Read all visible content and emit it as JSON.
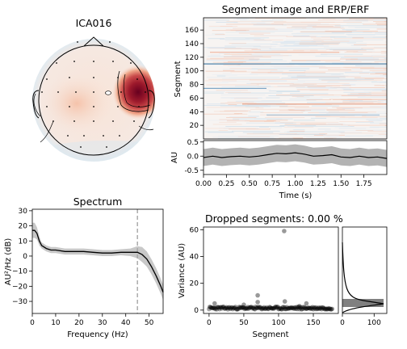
{
  "figure": {
    "topomap_title": "ICA016",
    "segment_title": "Segment image and ERP/ERF",
    "spectrum_title": "Spectrum",
    "dropped_title": "Dropped segments: 0.00 %"
  },
  "chart_data": [
    {
      "type": "heatmap",
      "name": "ICA016 topomap",
      "title": "ICA016",
      "peak_region": "right temporal (strong positive, dark red)",
      "secondary_region": "left frontal (light positive)",
      "colormap": "RdBu_r"
    },
    {
      "type": "heatmap",
      "name": "segment image",
      "title": "Segment image and ERP/ERF",
      "ylabel": "Segment",
      "ylim": [
        0,
        178
      ],
      "yticks": [
        "20",
        "40",
        "60",
        "80",
        "100",
        "120",
        "140",
        "160"
      ],
      "xlim": [
        0,
        2.0
      ],
      "colormap": "RdBu_r"
    },
    {
      "type": "line",
      "name": "ERP trace",
      "xlabel": "Time (s)",
      "ylabel": "AU",
      "xlim": [
        0,
        2.0
      ],
      "ylim": [
        -0.65,
        0.55
      ],
      "xticks": [
        "0.00",
        "0.25",
        "0.50",
        "0.75",
        "1.00",
        "1.25",
        "1.50",
        "1.75"
      ],
      "yticks": [
        "0.5",
        "0.0",
        "-0.5"
      ],
      "x": [
        0,
        0.1,
        0.2,
        0.3,
        0.4,
        0.5,
        0.6,
        0.7,
        0.8,
        0.9,
        1.0,
        1.1,
        1.2,
        1.3,
        1.4,
        1.5,
        1.6,
        1.7,
        1.8,
        1.9,
        2.0
      ],
      "y": [
        -0.05,
        0.0,
        -0.05,
        -0.02,
        0.0,
        -0.03,
        0.0,
        0.05,
        0.1,
        0.08,
        0.12,
        0.07,
        0.0,
        0.02,
        0.05,
        -0.03,
        -0.05,
        0.0,
        -0.05,
        -0.03,
        -0.08
      ],
      "band": 0.3
    },
    {
      "type": "line",
      "name": "power spectrum",
      "title": "Spectrum",
      "xlabel": "Frequency (Hz)",
      "ylabel": "AU²/Hz (dB)",
      "xlim": [
        0,
        56
      ],
      "ylim": [
        -38,
        31
      ],
      "xticks": [
        "0",
        "10",
        "20",
        "30",
        "40",
        "50"
      ],
      "yticks": [
        "30",
        "20",
        "10",
        "0",
        "−10",
        "−20",
        "−30"
      ],
      "x": [
        0,
        1,
        2,
        3,
        4,
        6,
        8,
        10,
        14,
        18,
        22,
        26,
        30,
        34,
        38,
        42,
        45,
        47,
        49,
        51,
        53,
        55,
        56
      ],
      "y": [
        17,
        17,
        15,
        10,
        7,
        5,
        4,
        4,
        3,
        3,
        3,
        2.5,
        2,
        2,
        2.5,
        2.5,
        2.5,
        1,
        -2,
        -7,
        -13,
        -20,
        -24
      ],
      "band": [
        5,
        5,
        4,
        3,
        2,
        2,
        2,
        2,
        2,
        2,
        2,
        2,
        2,
        2,
        2,
        2.5,
        4,
        5,
        5,
        5,
        5,
        5,
        5
      ],
      "vline_x": 45
    },
    {
      "type": "scatter",
      "name": "segment variance",
      "title": "Dropped segments: 0.00 %",
      "xlabel": "Segment",
      "ylabel": "Variance (AU)",
      "xlim": [
        -8,
        186
      ],
      "ylim": [
        -2.5,
        62
      ],
      "xticks": [
        "0",
        "50",
        "100",
        "150"
      ],
      "yticks": [
        "0",
        "20",
        "40",
        "60"
      ],
      "outliers": [
        {
          "x": 108,
          "y": 59
        },
        {
          "x": 70,
          "y": 11
        },
        {
          "x": 8,
          "y": 5
        },
        {
          "x": 70,
          "y": 6
        },
        {
          "x": 109,
          "y": 6.5
        },
        {
          "x": 50,
          "y": 4
        },
        {
          "x": 140,
          "y": 5
        },
        {
          "x": 130,
          "y": 3
        }
      ],
      "baseline_range": [
        0.5,
        2.5
      ],
      "n_segments": 178
    },
    {
      "type": "area",
      "name": "variance histogram",
      "xticks": [
        "0",
        "100"
      ],
      "xlim": [
        0,
        140
      ]
    }
  ]
}
